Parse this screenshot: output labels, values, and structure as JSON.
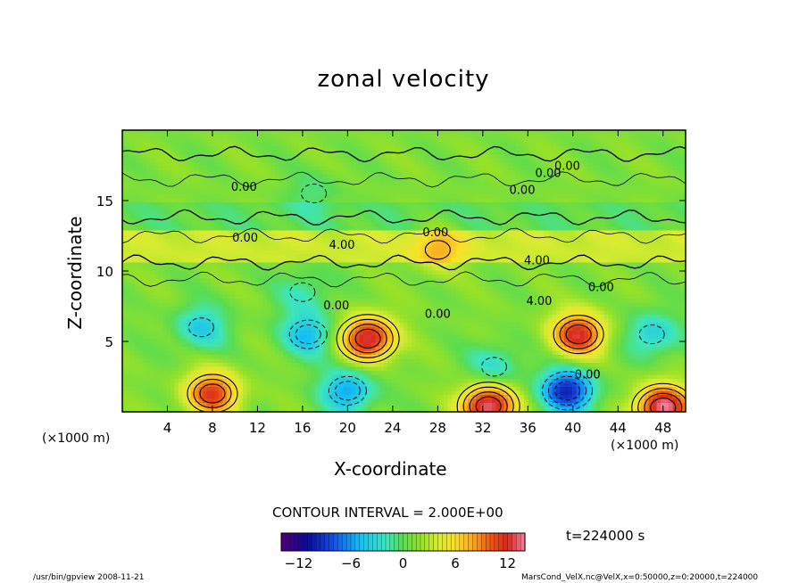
{
  "chart_data": {
    "type": "heatmap",
    "title": "zonal velocity",
    "xlabel": "X-coordinate",
    "ylabel": "Z-coordinate",
    "x_unit": "(×1000 m)",
    "z_unit": "(×1000 m)",
    "x_ticks": [
      "4",
      "8",
      "12",
      "16",
      "20",
      "24",
      "28",
      "32",
      "36",
      "40",
      "44",
      "48"
    ],
    "y_ticks": [
      "5",
      "10",
      "15"
    ],
    "xlim": [
      0,
      50
    ],
    "ylim": [
      0,
      20
    ],
    "contour_labels": [
      "0.00",
      "0.00",
      "0.00",
      "0.00",
      "0.00",
      "4.00",
      "0.00",
      "4.00",
      "0.00",
      "4.00",
      "0.00",
      "0.00",
      "0.00"
    ],
    "contour_interval_text": "CONTOUR INTERVAL = 2.000E+00",
    "colorbar": {
      "ticks": [
        "−12",
        "−6",
        "0",
        "6",
        "12"
      ],
      "min": -14,
      "max": 14
    },
    "features": [
      {
        "x": 7.0,
        "z": 6.0,
        "value": -5
      },
      {
        "x": 16.5,
        "z": 5.5,
        "value": -6
      },
      {
        "x": 21.8,
        "z": 5.2,
        "value": 12
      },
      {
        "x": 8.0,
        "z": 1.3,
        "value": 10
      },
      {
        "x": 40.5,
        "z": 5.5,
        "value": 11
      },
      {
        "x": 39.5,
        "z": 1.5,
        "value": -11
      },
      {
        "x": 47.0,
        "z": 5.5,
        "value": -5
      },
      {
        "x": 32.5,
        "z": 0.4,
        "value": 13
      },
      {
        "x": 48.0,
        "z": 0.3,
        "value": 13
      },
      {
        "x": 20.0,
        "z": 1.5,
        "value": -7
      },
      {
        "x": 33.0,
        "z": 3.2,
        "value": -4
      },
      {
        "x": 28.0,
        "z": 11.5,
        "value": 4
      },
      {
        "x": 16.0,
        "z": 8.5,
        "value": -3
      },
      {
        "x": 17.0,
        "z": 15.5,
        "value": -2
      }
    ]
  },
  "time_label": "t=224000 s",
  "footer": {
    "left": "/usr/bin/gpview  2008-11-21",
    "right": "MarsCond_VelX.nc@VelX,x=0:50000,z=0:20000,t=224000"
  }
}
